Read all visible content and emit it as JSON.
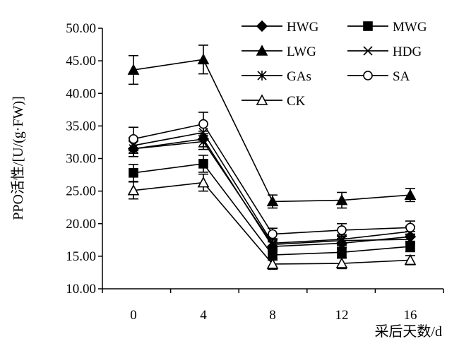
{
  "chart_data": {
    "type": "line",
    "ylabel": "PPO活性/[U/(g·FW)]",
    "xlabel": "采后天数/d",
    "x": [
      0,
      4,
      8,
      12,
      16
    ],
    "ylim": [
      10,
      50
    ],
    "yticks": [
      "10.00",
      "15.00",
      "20.00",
      "25.00",
      "30.00",
      "35.00",
      "40.00",
      "45.00",
      "50.00"
    ],
    "xticks": [
      "0",
      "4",
      "8",
      "12",
      "16"
    ],
    "grid": false,
    "legend": "top-right",
    "series": [
      {
        "name": "HWG",
        "marker": "diamond-filled",
        "values": [
          31.5,
          33.0,
          16.5,
          17.0,
          18.0
        ],
        "errors": [
          1.2,
          1.2,
          0.7,
          0.7,
          0.8
        ]
      },
      {
        "name": "MWG",
        "marker": "square-filled",
        "values": [
          27.8,
          29.2,
          15.2,
          15.6,
          16.5
        ],
        "errors": [
          1.3,
          1.3,
          0.8,
          0.8,
          0.8
        ]
      },
      {
        "name": "LWG",
        "marker": "triangle-filled",
        "values": [
          43.6,
          45.2,
          23.4,
          23.6,
          24.4
        ],
        "errors": [
          2.2,
          2.2,
          1.0,
          1.2,
          1.0
        ]
      },
      {
        "name": "HDG",
        "marker": "x",
        "values": [
          32.0,
          34.0,
          17.0,
          17.6,
          18.8
        ],
        "errors": [
          1.2,
          1.2,
          0.7,
          0.7,
          0.8
        ]
      },
      {
        "name": "GAs",
        "marker": "asterisk",
        "values": [
          31.5,
          32.6,
          16.8,
          17.4,
          17.6
        ],
        "errors": [
          1.2,
          1.2,
          0.7,
          0.7,
          0.7
        ]
      },
      {
        "name": "SA",
        "marker": "circle-open",
        "values": [
          33.0,
          35.3,
          18.4,
          19.0,
          19.4
        ],
        "errors": [
          1.8,
          1.8,
          0.9,
          1.0,
          1.0
        ]
      },
      {
        "name": "CK",
        "marker": "triangle-open",
        "values": [
          25.1,
          26.3,
          13.8,
          13.9,
          14.4
        ],
        "errors": [
          1.3,
          1.3,
          0.8,
          0.8,
          0.7
        ]
      }
    ]
  }
}
